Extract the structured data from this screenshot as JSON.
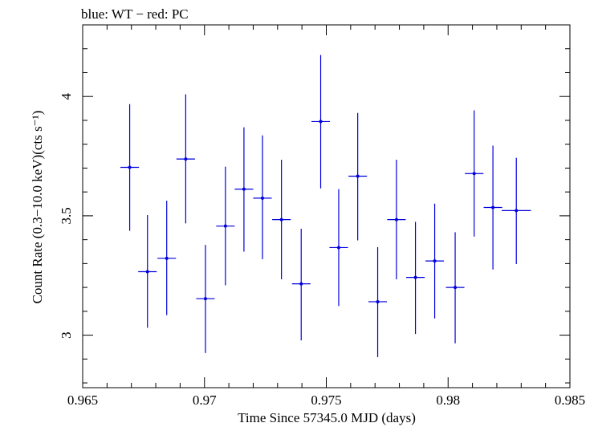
{
  "chart_data": {
    "type": "scatter",
    "title": "blue: WT − red: PC",
    "xlabel": "Time Since 57345.0 MJD (days)",
    "ylabel": "Count Rate (0.3−10.0 keV)(cts s⁻¹)",
    "xlim": [
      0.965,
      0.985
    ],
    "ylim": [
      2.78,
      4.3
    ],
    "x_ticks": [
      "0.965",
      "0.97",
      "0.975",
      "0.98",
      "0.985"
    ],
    "x_tick_values": [
      0.965,
      0.97,
      0.975,
      0.98,
      0.985
    ],
    "y_ticks": [
      "3",
      "3.5",
      "4"
    ],
    "y_tick_values": [
      3,
      3.5,
      4
    ],
    "grid": false,
    "series": [
      {
        "color": "#0000dd",
        "points": [
          {
            "x": 0.96693,
            "y": 3.703,
            "xerr": 0.00038,
            "ylo": 3.437,
            "yhi": 3.968
          },
          {
            "x": 0.96766,
            "y": 3.266,
            "xerr": 0.00038,
            "ylo": 3.031,
            "yhi": 3.503
          },
          {
            "x": 0.96845,
            "y": 3.322,
            "xerr": 0.00038,
            "ylo": 3.084,
            "yhi": 3.563
          },
          {
            "x": 0.96923,
            "y": 3.738,
            "xerr": 0.00038,
            "ylo": 3.468,
            "yhi": 4.009
          },
          {
            "x": 0.97004,
            "y": 3.153,
            "xerr": 0.00038,
            "ylo": 2.925,
            "yhi": 3.378
          },
          {
            "x": 0.97086,
            "y": 3.457,
            "xerr": 0.00038,
            "ylo": 3.209,
            "yhi": 3.706
          },
          {
            "x": 0.97162,
            "y": 3.612,
            "xerr": 0.00038,
            "ylo": 3.35,
            "yhi": 3.871
          },
          {
            "x": 0.97238,
            "y": 3.574,
            "xerr": 0.00038,
            "ylo": 3.318,
            "yhi": 3.837
          },
          {
            "x": 0.97316,
            "y": 3.484,
            "xerr": 0.00038,
            "ylo": 3.234,
            "yhi": 3.735
          },
          {
            "x": 0.97397,
            "y": 3.215,
            "xerr": 0.00038,
            "ylo": 2.978,
            "yhi": 3.446
          },
          {
            "x": 0.97477,
            "y": 3.895,
            "xerr": 0.00038,
            "ylo": 3.615,
            "yhi": 4.174
          },
          {
            "x": 0.97551,
            "y": 3.367,
            "xerr": 0.00038,
            "ylo": 3.122,
            "yhi": 3.612
          },
          {
            "x": 0.97629,
            "y": 3.666,
            "xerr": 0.00038,
            "ylo": 3.397,
            "yhi": 3.931
          },
          {
            "x": 0.97711,
            "y": 3.14,
            "xerr": 0.00038,
            "ylo": 2.908,
            "yhi": 3.369
          },
          {
            "x": 0.97788,
            "y": 3.484,
            "xerr": 0.00038,
            "ylo": 3.234,
            "yhi": 3.735
          },
          {
            "x": 0.97866,
            "y": 3.242,
            "xerr": 0.00038,
            "ylo": 3.005,
            "yhi": 3.475
          },
          {
            "x": 0.97945,
            "y": 3.311,
            "xerr": 0.00038,
            "ylo": 3.07,
            "yhi": 3.551
          },
          {
            "x": 0.98029,
            "y": 3.2,
            "xerr": 0.00038,
            "ylo": 2.966,
            "yhi": 3.431
          },
          {
            "x": 0.98107,
            "y": 3.677,
            "xerr": 0.00038,
            "ylo": 3.413,
            "yhi": 3.942
          },
          {
            "x": 0.98184,
            "y": 3.535,
            "xerr": 0.00038,
            "ylo": 3.275,
            "yhi": 3.794
          },
          {
            "x": 0.9828,
            "y": 3.522,
            "xerr": 0.0006,
            "ylo": 3.298,
            "yhi": 3.743
          }
        ]
      }
    ]
  }
}
